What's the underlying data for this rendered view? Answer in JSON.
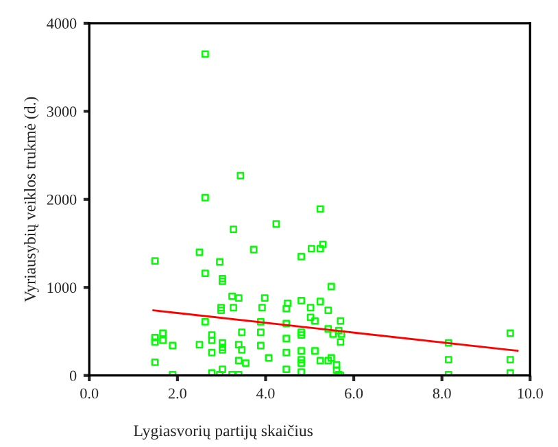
{
  "chart_data": {
    "type": "scatter",
    "xlabel": "Lygiasvorių partijų skaičius",
    "ylabel": "Vyriausybių veiklos trukmė (d.)",
    "xlim": [
      0,
      10
    ],
    "ylim": [
      0,
      4000
    ],
    "xticks": [
      {
        "value": 0,
        "label": "0.0"
      },
      {
        "value": 2,
        "label": "2.0"
      },
      {
        "value": 4,
        "label": "4.0"
      },
      {
        "value": 6,
        "label": "6.0"
      },
      {
        "value": 8,
        "label": "8.0"
      },
      {
        "value": 10,
        "label": "10.0"
      }
    ],
    "yticks": [
      0,
      1000,
      2000,
      3000,
      4000
    ],
    "grid": false,
    "series": [
      {
        "marker": "square",
        "color": "#00ff00",
        "x": [
          2.63,
          3.43,
          2.63,
          3.27,
          4.24,
          5.04,
          1.49,
          2.5,
          3.73,
          4.81,
          2.96,
          2.63,
          3.02,
          3.02,
          3.24,
          3.39,
          3.98,
          2.99,
          2.99,
          3.27,
          3.92,
          4.5,
          4.47,
          4.81,
          5.02,
          5.02,
          2.63,
          3.89,
          4.47,
          1.49,
          1.49,
          1.67,
          1.67,
          1.89,
          2.78,
          2.78,
          2.5,
          2.78,
          3.46,
          3.89,
          4.47,
          4.81,
          4.81,
          3.02,
          3.02,
          3.02,
          3.39,
          3.46,
          3.89,
          4.07,
          4.47,
          4.81,
          1.49,
          3.39,
          3.55,
          4.81,
          4.81,
          3.02,
          4.47,
          4.81,
          1.89,
          2.78,
          2.96,
          3.24,
          3.39,
          5.24,
          5.24,
          5.3,
          5.49,
          5.24,
          5.42,
          5.12,
          5.7,
          5.42,
          5.66,
          5.53,
          5.72,
          5.7,
          5.12,
          5.49,
          5.24,
          5.42,
          5.61,
          5.61,
          5.66,
          5.7,
          8.15,
          8.15,
          8.15,
          9.55,
          9.55,
          9.55
        ],
        "values": [
          3650,
          2270,
          2020,
          1660,
          1720,
          1440,
          1300,
          1400,
          1430,
          1350,
          1290,
          1160,
          1100,
          1070,
          900,
          880,
          880,
          770,
          740,
          770,
          770,
          820,
          760,
          850,
          770,
          660,
          610,
          610,
          590,
          430,
          380,
          480,
          400,
          340,
          460,
          400,
          350,
          260,
          490,
          490,
          420,
          490,
          460,
          370,
          320,
          290,
          350,
          290,
          340,
          200,
          260,
          280,
          150,
          170,
          140,
          180,
          140,
          70,
          70,
          40,
          10,
          30,
          10,
          10,
          10,
          1890,
          1440,
          1490,
          1010,
          840,
          740,
          620,
          620,
          530,
          510,
          470,
          470,
          380,
          280,
          200,
          170,
          170,
          120,
          60,
          10,
          0,
          370,
          180,
          10,
          480,
          180,
          30
        ]
      },
      {
        "type": "line",
        "color": "#ff0000",
        "x": [
          1.45,
          9.72
        ],
        "values": [
          740,
          280
        ]
      }
    ]
  }
}
